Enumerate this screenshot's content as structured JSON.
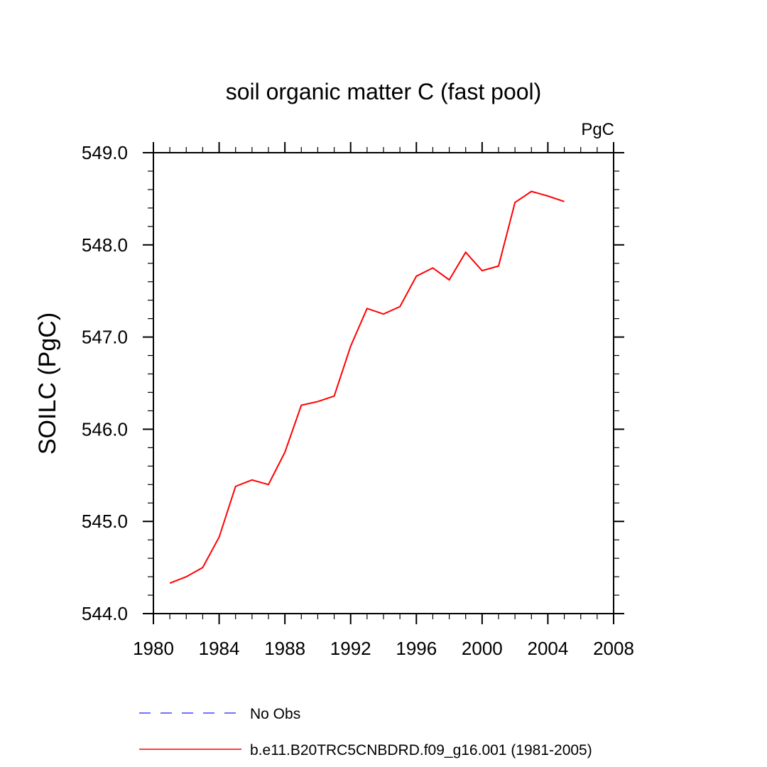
{
  "chart_data": {
    "type": "line",
    "title": "soil organic matter C (fast pool)",
    "units_label": "PgC",
    "ylabel": "SOILC  (PgC)",
    "xlabel": "",
    "xlim": [
      1980,
      2008
    ],
    "ylim": [
      544.0,
      549.0
    ],
    "x_ticks": [
      1980,
      1984,
      1988,
      1992,
      1996,
      2000,
      2004,
      2008
    ],
    "x_tick_labels": [
      "1980",
      "1984",
      "1988",
      "1992",
      "1996",
      "2000",
      "2004",
      "2008"
    ],
    "y_ticks": [
      544.0,
      545.0,
      546.0,
      547.0,
      548.0,
      549.0
    ],
    "y_tick_labels": [
      "544.0",
      "545.0",
      "546.0",
      "547.0",
      "548.0",
      "549.0"
    ],
    "x_minor_step": 1,
    "y_minor_step": 0.2,
    "grid": false,
    "legend_position": "bottom",
    "series": [
      {
        "name": "No Obs",
        "color": "#4444ff",
        "dash": "dashed",
        "x": [],
        "values": []
      },
      {
        "name": "b.e11.B20TRC5CNBDRD.f09_g16.001 (1981-2005)",
        "color": "#ff0000",
        "dash": "solid",
        "x": [
          1981,
          1982,
          1983,
          1984,
          1985,
          1986,
          1987,
          1988,
          1989,
          1990,
          1991,
          1992,
          1993,
          1994,
          1995,
          1996,
          1997,
          1998,
          1999,
          2000,
          2001,
          2002,
          2003,
          2004,
          2005
        ],
        "values": [
          544.33,
          544.4,
          544.5,
          544.83,
          545.38,
          545.45,
          545.4,
          545.75,
          546.26,
          546.3,
          546.36,
          546.9,
          547.31,
          547.25,
          547.33,
          547.66,
          547.75,
          547.62,
          547.92,
          547.72,
          547.77,
          548.46,
          548.58,
          548.53,
          548.47
        ]
      }
    ]
  }
}
